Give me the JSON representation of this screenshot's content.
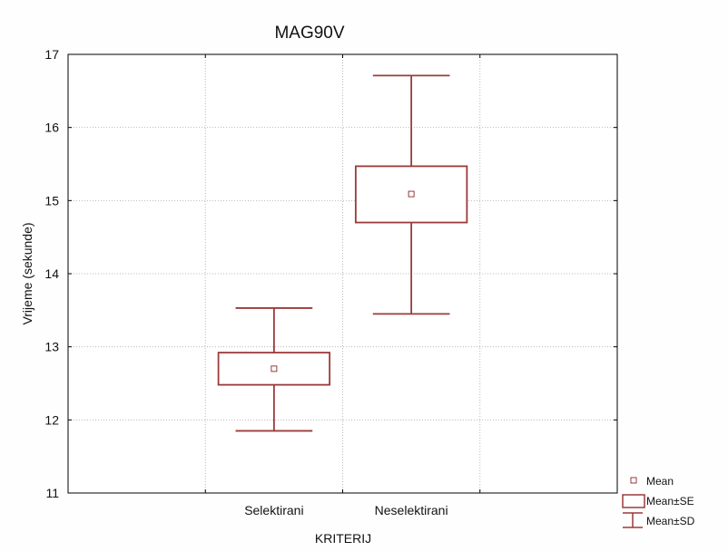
{
  "chart_data": {
    "type": "boxplot",
    "title": "MAG90V",
    "xlabel": "KRITERIJ",
    "ylabel": "Vrijeme (sekunde)",
    "categories": [
      "Selektirani",
      "Neselektirani"
    ],
    "ylim": [
      11,
      17
    ],
    "yticks": [
      "11",
      "12",
      "13",
      "14",
      "15",
      "16",
      "17"
    ],
    "grid": true,
    "legend_position": "bottom-right",
    "series": [
      {
        "category": "Selektirani",
        "mean": 12.7,
        "se_low": 12.48,
        "se_high": 12.92,
        "sd_low": 11.85,
        "sd_high": 13.53
      },
      {
        "category": "Neselektirani",
        "mean": 15.09,
        "se_low": 14.7,
        "se_high": 15.47,
        "sd_low": 13.45,
        "sd_high": 16.71
      }
    ],
    "legend": [
      "Mean",
      "Mean±SE",
      "Mean±SD"
    ],
    "colors": {
      "series": "#9b3a3a",
      "grid": "#b8b8b8",
      "frame": "#000000"
    }
  }
}
